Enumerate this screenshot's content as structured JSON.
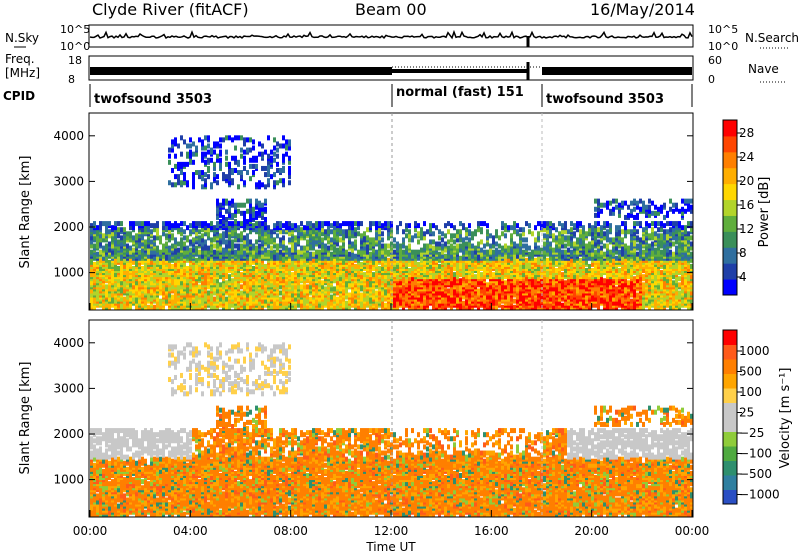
{
  "header": {
    "title": "Clyde River (fitACF)",
    "beam": "Beam 00",
    "date": "16/May/2014"
  },
  "panels": {
    "nsky": {
      "label": "N.Sky",
      "ticks": [
        "10^5",
        "10^0"
      ],
      "right_label": "N.Search",
      "right_ticks": [
        "10^5",
        "10^0"
      ]
    },
    "freq": {
      "label_line1": "Freq.",
      "label_line2": "[MHz]",
      "ticks": [
        "18",
        "8"
      ],
      "right_label": "Nave",
      "right_ticks": [
        "60",
        "0"
      ]
    },
    "cpid": {
      "label": "CPID",
      "segments": [
        {
          "name": "twofsound 3503",
          "start_hour": 0
        },
        {
          "name": "normal (fast) 151",
          "start_hour": 12
        },
        {
          "name": "twofsound 3503",
          "start_hour": 18
        }
      ]
    }
  },
  "chart_data": [
    {
      "type": "heatmap",
      "panel": "power",
      "ylabel": "Slant Range [km]",
      "ylim": [
        180,
        4500
      ],
      "yticks": [
        1000,
        2000,
        3000,
        4000
      ],
      "colorbar": {
        "label": "Power [dB]",
        "ticks": [
          4,
          8,
          12,
          16,
          20,
          24,
          28
        ],
        "colors": [
          "#0000ff",
          "#1f3fa8",
          "#2f6f9f",
          "#3a8f5a",
          "#5fae3c",
          "#b2d42a",
          "#ffd700",
          "#ffae00",
          "#ff7f00",
          "#ff4500",
          "#ff0000"
        ]
      }
    },
    {
      "type": "heatmap",
      "panel": "velocity",
      "ylabel": "Slant Range [km]",
      "ylim": [
        180,
        4500
      ],
      "yticks": [
        1000,
        2000,
        3000,
        4000
      ],
      "colorbar": {
        "label": "Velocity [m s⁻¹]",
        "ticks": [
          "1000",
          "500",
          "100",
          "25",
          "−25",
          "−100",
          "−500",
          "−1000"
        ],
        "colors": [
          "#2a4fc4",
          "#2f7fa0",
          "#2e8f6e",
          "#4faa40",
          "#8fcc3a",
          "#c8c8c8",
          "#c8c8c8",
          "#ffd04a",
          "#ffa500",
          "#ff7f00",
          "#ff5a1a",
          "#ff0000"
        ]
      }
    }
  ],
  "xaxis": {
    "label": "Time UT",
    "range_hours": [
      0,
      24
    ],
    "tick_labels": [
      "00:00",
      "04:00",
      "08:00",
      "12:00",
      "16:00",
      "20:00",
      "00:00"
    ]
  }
}
